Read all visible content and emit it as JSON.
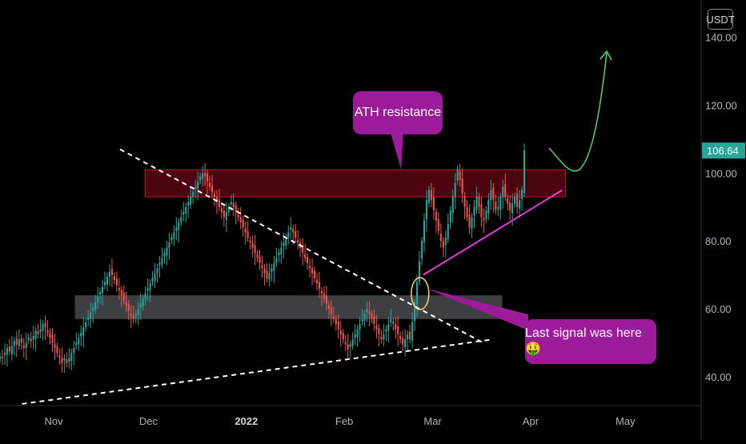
{
  "chart_data": {
    "type": "candlestick",
    "currency": "USDT",
    "last_price": "106.64",
    "y_ticks": [
      "140.00",
      "120.00",
      "100.00",
      "80.00",
      "60.00",
      "40.00"
    ],
    "y_tick_values": [
      140,
      120,
      100,
      80,
      60,
      40
    ],
    "ylim": [
      31.5,
      151
    ],
    "x_ticks": [
      "Nov",
      "Dec",
      "2022",
      "Feb",
      "Mar",
      "Apr",
      "May"
    ],
    "x_tick_dates": [
      "2021-11-01",
      "2021-12-01",
      "2022-01-01",
      "2022-02-01",
      "2022-03-01",
      "2022-04-01",
      "2022-05-01"
    ],
    "xlim": [
      "2021-10-15",
      "2022-05-25"
    ],
    "ohlc_dates_start": "2021-10-15",
    "closes": [
      46,
      45.5,
      47,
      48.5,
      47.5,
      49,
      50.5,
      49.5,
      51,
      50,
      48.5,
      50,
      51.5,
      50.5,
      52,
      53.5,
      52.5,
      54,
      55.5,
      54.5,
      53,
      51.5,
      50,
      48.5,
      47,
      45.5,
      44,
      45.5,
      44,
      45.5,
      47,
      48.5,
      50,
      51.5,
      53,
      54.5,
      56,
      57.5,
      59,
      60.5,
      62,
      63.5,
      65,
      66.5,
      68,
      69.5,
      71,
      70,
      68.5,
      67,
      65.5,
      64,
      62.5,
      61,
      59.5,
      58,
      57,
      58.5,
      60,
      61.5,
      63,
      64.5,
      66,
      67.5,
      69,
      70.5,
      72,
      73.5,
      75,
      76.5,
      78,
      79.5,
      81,
      82.5,
      84,
      85.5,
      87,
      88.5,
      90,
      91.5,
      93,
      94.5,
      96,
      97.5,
      99,
      100,
      99,
      97.5,
      96,
      94.5,
      93,
      91.5,
      90,
      88.5,
      87,
      88.5,
      90,
      91.5,
      90,
      88.5,
      87,
      85.5,
      84,
      82.5,
      81,
      79.5,
      78,
      76.5,
      75,
      73.5,
      72,
      70.5,
      69,
      70.5,
      72,
      73.5,
      75,
      76.5,
      78,
      79.5,
      81,
      82.5,
      84,
      82.5,
      81,
      79.5,
      78,
      76.5,
      75,
      73.5,
      72,
      70.5,
      69,
      67.5,
      66,
      64.5,
      63,
      61.5,
      60,
      58.5,
      57,
      55.5,
      54,
      52.5,
      51,
      49.5,
      48,
      49.5,
      51,
      52.5,
      54,
      55.5,
      57,
      58.5,
      60,
      58.5,
      57,
      55.5,
      54,
      52.5,
      51,
      52.5,
      54,
      55.5,
      57,
      55.5,
      54,
      52.5,
      51,
      49.5,
      51,
      52.5,
      51,
      56,
      62,
      68,
      74,
      80,
      86,
      92,
      95,
      92,
      89,
      86,
      83,
      80,
      78,
      81,
      85,
      89,
      93,
      97,
      101,
      98,
      94,
      90,
      87,
      84,
      87,
      90,
      93,
      90,
      87,
      86,
      89,
      92,
      95,
      92,
      89,
      90,
      93,
      96,
      93,
      91,
      89,
      91,
      93,
      90,
      92,
      95,
      106.64
    ],
    "resistance_zone": [
      93,
      101
    ],
    "support_zone": [
      57,
      64
    ],
    "annotations": [
      "ATH resistance",
      "Last signal was here 🤑"
    ]
  },
  "colors": {
    "background": "#000000",
    "up": "#26a69a",
    "down": "#ef5350",
    "resistance_zone": "#8b0a1c",
    "support_zone": "#b2b5be",
    "callout": "#9c1b9a",
    "trendline_pink": "#e23ad4",
    "arrow_green": "#4cd964",
    "dashed": "#ffffff",
    "axis_text": "#b2b5be",
    "price_tag": "#26a69a"
  }
}
